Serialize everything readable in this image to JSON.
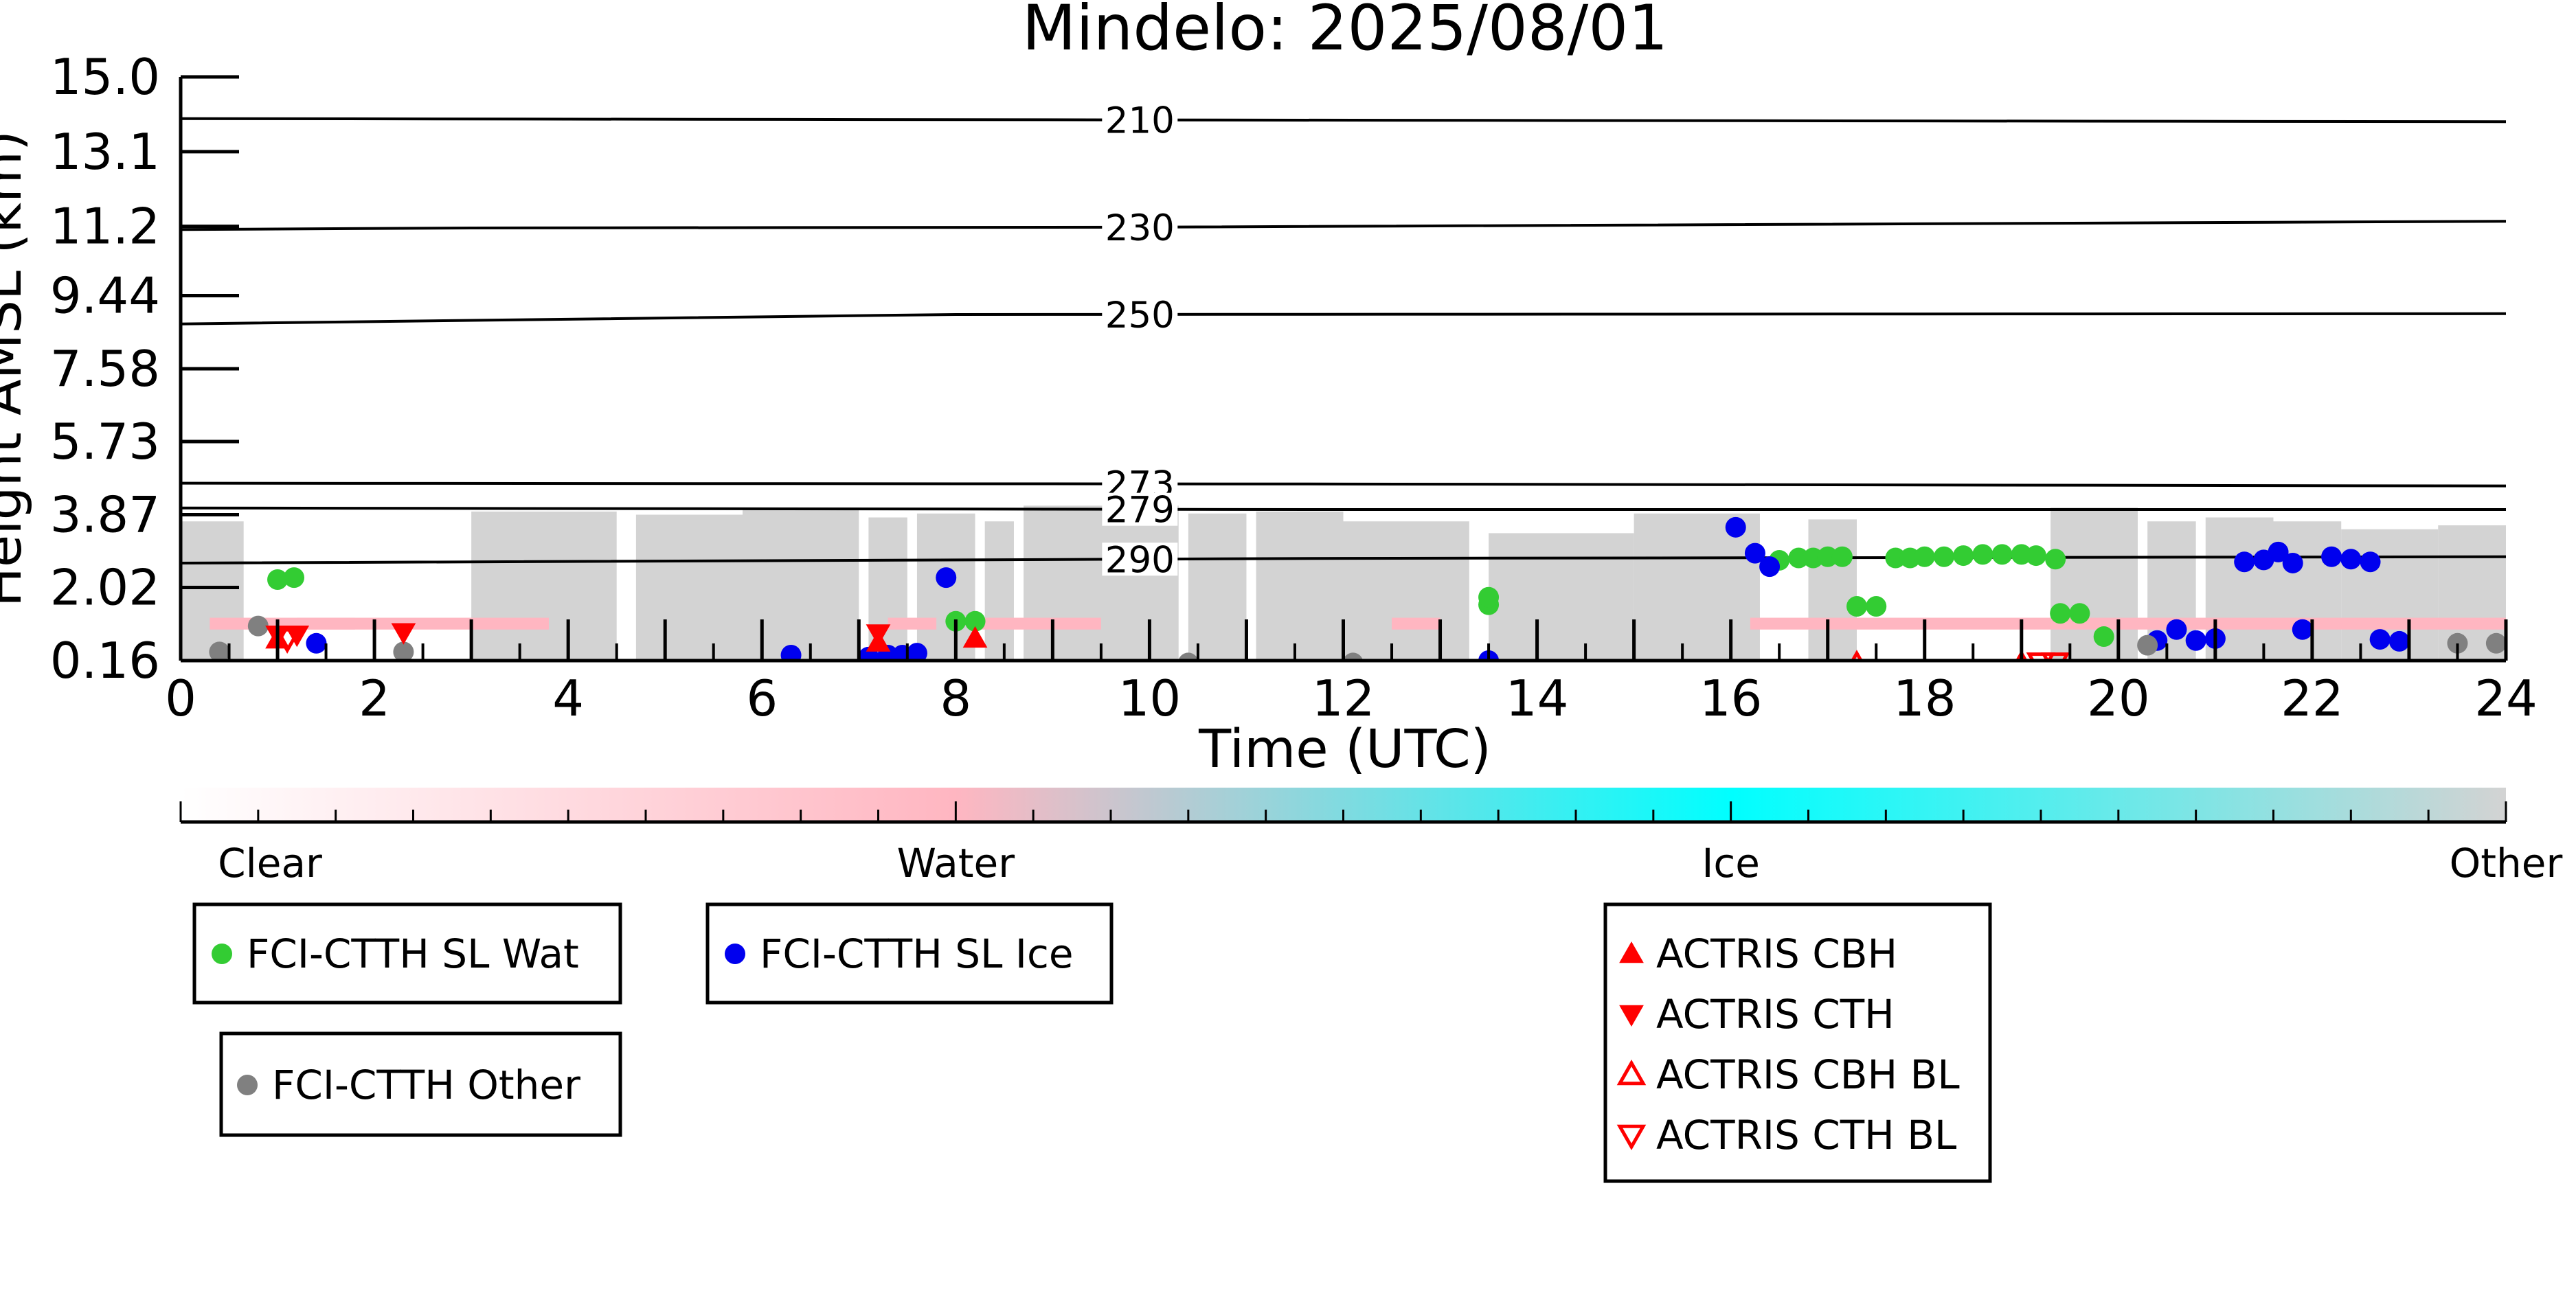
{
  "chart_data": {
    "type": "scatter",
    "title": "Mindelo: 2025/08/01",
    "xlabel": "Time (UTC)",
    "ylabel": "Height AMSL (km)",
    "xlim": [
      0,
      24
    ],
    "x_ticks": [
      "0",
      "2",
      "4",
      "6",
      "8",
      "10",
      "12",
      "14",
      "16",
      "18",
      "20",
      "22",
      "24"
    ],
    "y_ticks": [
      "0.16",
      "2.02",
      "3.87",
      "5.73",
      "7.58",
      "9.44",
      "11.2",
      "13.1",
      "15.0"
    ],
    "y_tick_values": [
      0.16,
      2.02,
      3.87,
      5.73,
      7.58,
      9.44,
      11.2,
      13.1,
      15.0
    ],
    "ylim": [
      0.16,
      15.0
    ],
    "grid": false,
    "isotherms": [
      {
        "label": "210",
        "x": [
          0,
          24
        ],
        "y": [
          13.94,
          13.86
        ]
      },
      {
        "label": "230",
        "x": [
          0,
          3,
          10,
          24
        ],
        "y": [
          11.12,
          11.16,
          11.18,
          11.33
        ]
      },
      {
        "label": "250",
        "x": [
          0,
          4,
          8,
          24
        ],
        "y": [
          8.72,
          8.84,
          8.96,
          8.98
        ]
      },
      {
        "label": "273",
        "x": [
          0,
          12,
          24
        ],
        "y": [
          4.67,
          4.65,
          4.6
        ]
      },
      {
        "label": "279",
        "x": [
          0,
          12,
          24
        ],
        "y": [
          4.04,
          4.0,
          4.0
        ]
      },
      {
        "label": "290",
        "x": [
          0,
          12,
          24
        ],
        "y": [
          2.64,
          2.76,
          2.8
        ]
      }
    ],
    "series": [
      {
        "name": "FCI-CTTH SL Wat",
        "color": "#33cc33",
        "marker": "circle",
        "points": [
          [
            1.0,
            2.22
          ],
          [
            1.17,
            2.27
          ],
          [
            8.0,
            1.16
          ],
          [
            8.2,
            1.16
          ],
          [
            13.5,
            1.58
          ],
          [
            13.5,
            1.77
          ],
          [
            16.5,
            2.71
          ],
          [
            16.7,
            2.77
          ],
          [
            16.85,
            2.77
          ],
          [
            17.0,
            2.8
          ],
          [
            17.15,
            2.8
          ],
          [
            17.3,
            1.54
          ],
          [
            17.5,
            1.54
          ],
          [
            17.7,
            2.77
          ],
          [
            17.85,
            2.77
          ],
          [
            18.0,
            2.8
          ],
          [
            18.2,
            2.8
          ],
          [
            18.4,
            2.83
          ],
          [
            18.6,
            2.86
          ],
          [
            18.8,
            2.86
          ],
          [
            19.0,
            2.86
          ],
          [
            19.15,
            2.83
          ],
          [
            19.35,
            2.74
          ],
          [
            19.4,
            1.36
          ],
          [
            19.6,
            1.36
          ],
          [
            19.85,
            0.77
          ]
        ]
      },
      {
        "name": "FCI-CTTH SL Ice",
        "color": "#0000ee",
        "marker": "circle",
        "points": [
          [
            1.4,
            0.6
          ],
          [
            6.3,
            0.3
          ],
          [
            7.1,
            0.25
          ],
          [
            7.3,
            0.3
          ],
          [
            7.45,
            0.3
          ],
          [
            7.6,
            0.35
          ],
          [
            7.9,
            2.27
          ],
          [
            13.5,
            0.16
          ],
          [
            16.05,
            3.55
          ],
          [
            16.25,
            2.89
          ],
          [
            16.4,
            2.55
          ],
          [
            20.4,
            0.67
          ],
          [
            20.6,
            0.95
          ],
          [
            20.8,
            0.67
          ],
          [
            21.0,
            0.72
          ],
          [
            21.3,
            2.67
          ],
          [
            21.5,
            2.72
          ],
          [
            21.65,
            2.92
          ],
          [
            21.8,
            2.64
          ],
          [
            21.9,
            0.95
          ],
          [
            22.2,
            2.8
          ],
          [
            22.4,
            2.74
          ],
          [
            22.6,
            2.67
          ],
          [
            22.7,
            0.7
          ],
          [
            22.9,
            0.65
          ]
        ]
      },
      {
        "name": "FCI-CTTH Other",
        "color": "#808080",
        "marker": "circle",
        "points": [
          [
            0.4,
            0.38
          ],
          [
            0.8,
            1.04
          ],
          [
            2.3,
            0.38
          ],
          [
            10.4,
            0.1
          ],
          [
            12.1,
            0.1
          ],
          [
            20.3,
            0.55
          ],
          [
            23.5,
            0.6
          ],
          [
            23.9,
            0.6
          ]
        ]
      },
      {
        "name": "ACTRIS CBH",
        "color": "#ff0000",
        "marker": "triangle-up",
        "points": [
          [
            1.0,
            0.7
          ],
          [
            7.2,
            0.62
          ],
          [
            8.2,
            0.72
          ]
        ]
      },
      {
        "name": "ACTRIS CTH",
        "color": "#ff0000",
        "marker": "triangle-down",
        "points": [
          [
            1.0,
            0.82
          ],
          [
            1.2,
            0.82
          ],
          [
            2.3,
            0.88
          ],
          [
            7.2,
            0.85
          ]
        ]
      },
      {
        "name": "ACTRIS CBH BL",
        "color": "#ff0000",
        "marker": "triangle-up-open",
        "points": [
          [
            17.3,
            0.05
          ],
          [
            19.0,
            0.05
          ]
        ]
      },
      {
        "name": "ACTRIS CTH BL",
        "color": "#ff0000",
        "marker": "triangle-down-open",
        "points": [
          [
            1.1,
            0.72
          ],
          [
            19.2,
            0.1
          ],
          [
            19.35,
            0.1
          ]
        ]
      }
    ],
    "colorbar": {
      "labels": [
        "Clear",
        "Water",
        "Ice",
        "Other"
      ],
      "colors": [
        "#ffffff",
        "#ffb6c1",
        "#00ffff",
        "#d3d3d3"
      ]
    },
    "legends": [
      {
        "entries": [
          "FCI-CTTH SL Wat"
        ]
      },
      {
        "entries": [
          "FCI-CTTH SL Ice"
        ]
      },
      {
        "entries": [
          "FCI-CTTH Other"
        ]
      },
      {
        "entries": [
          "ACTRIS CBH",
          "ACTRIS CTH",
          "ACTRIS CBH BL",
          "ACTRIS CTH BL"
        ]
      }
    ]
  }
}
